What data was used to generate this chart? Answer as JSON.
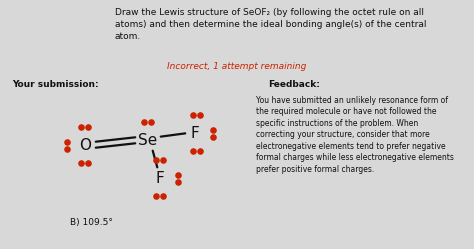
{
  "bg_color": "#d8d8d8",
  "title_text": "Draw the Lewis structure of SeOF₂ (by following the octet rule on all\natoms) and then determine the ideal bonding angle(s) of the central\natom.",
  "incorrect_text": "Incorrect, 1 attempt remaining",
  "incorrect_color": "#cc2200",
  "your_submission_text": "Your submission:",
  "feedback_title": "Feedback:",
  "feedback_body": "You have submitted an unlikely resonance form of\nthe required molecule or have not followed the\nspecific instructions of the problem. When\ncorrecting your structure, consider that more\nelectronegative elements tend to prefer negative\nformal charges while less electronegative elements\nprefer positive formal charges.",
  "answer_label": "B) 109.5°",
  "dot_color": "#cc2200",
  "title_fontsize": 6.5,
  "body_fontsize": 5.8
}
